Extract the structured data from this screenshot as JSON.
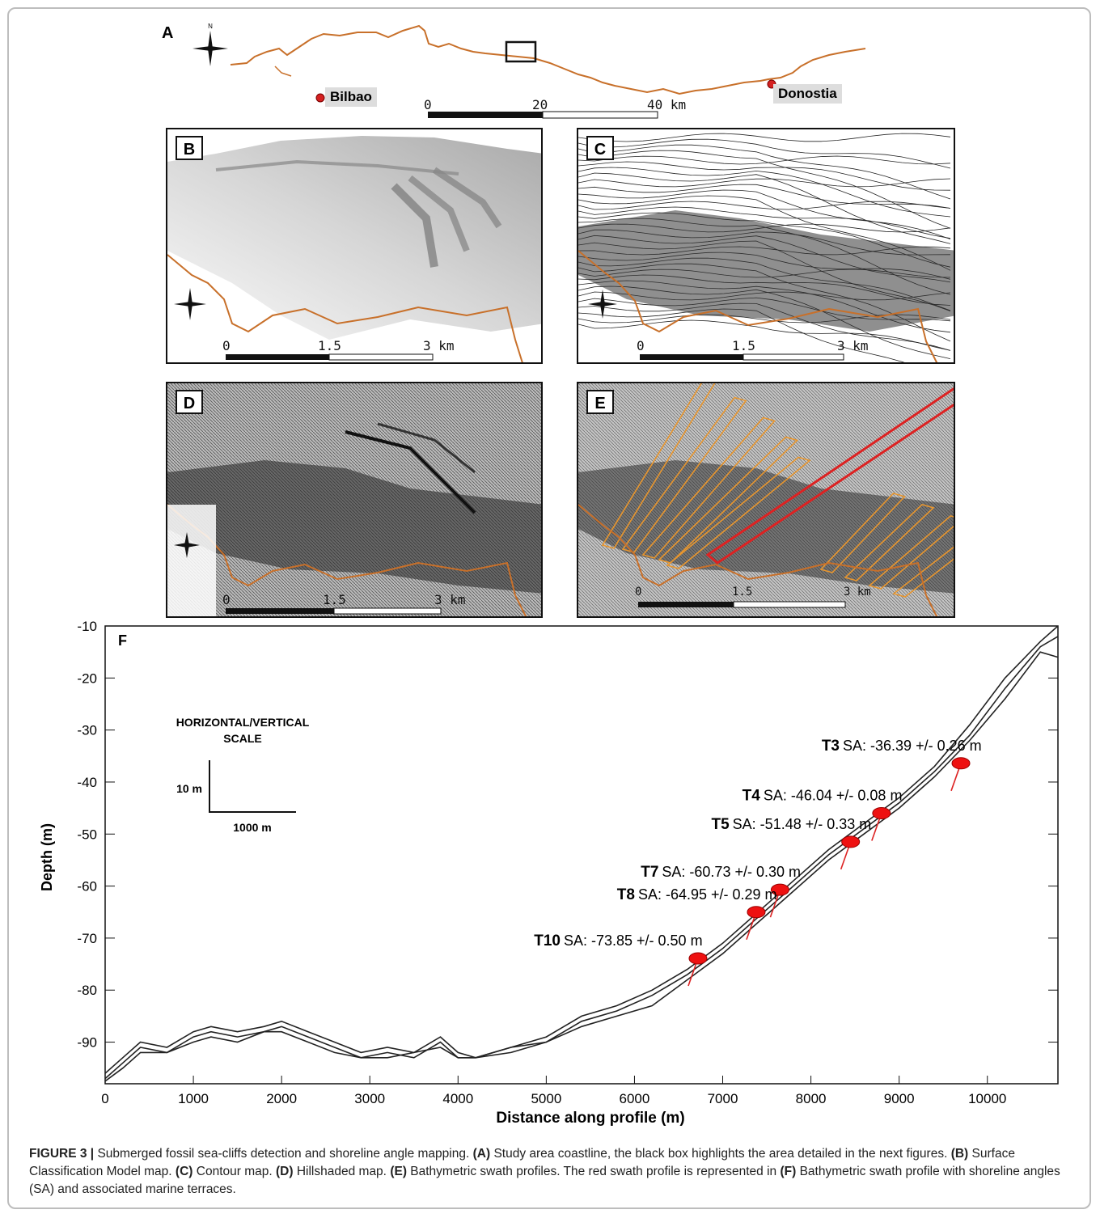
{
  "panels": {
    "a": {
      "label": "A"
    },
    "b": {
      "label": "B"
    },
    "c": {
      "label": "C"
    },
    "d": {
      "label": "D"
    },
    "e": {
      "label": "E"
    },
    "f": {
      "label": "F"
    }
  },
  "map_a": {
    "cities": [
      "Bilbao",
      "Donostia"
    ],
    "scale_ticks": [
      "0",
      "20",
      "40 km"
    ]
  },
  "small_scale_ticks": [
    "0",
    "1.5",
    "3 km"
  ],
  "north_label": "N",
  "colors": {
    "coast": "#c8702a",
    "swath": "#e8962e",
    "profile": "#dd2222",
    "marker": "#ee1111"
  },
  "chart_data": {
    "type": "line",
    "xlabel": "Distance along profile (m)",
    "ylabel": "Depth (m)",
    "xlim": [
      0,
      10800
    ],
    "ylim": [
      -98,
      -10
    ],
    "xticks": [
      "0",
      "1000",
      "2000",
      "3000",
      "4000",
      "5000",
      "6000",
      "7000",
      "8000",
      "9000",
      "10000"
    ],
    "yticks": [
      "-10",
      "-20",
      "-30",
      "-40",
      "-50",
      "-60",
      "-70",
      "-80",
      "-90"
    ],
    "scale_box": {
      "title_line1": "HORIZONTAL/VERTICAL",
      "title_line2": "SCALE",
      "vertical": "10 m",
      "horizontal": "1000 m"
    },
    "series": [
      {
        "x": [
          0,
          200,
          400,
          700,
          1000,
          1200,
          1500,
          1800,
          2000,
          2300,
          2600,
          2900,
          3200,
          3500,
          3800,
          4000,
          4200,
          4600,
          5000,
          5400,
          5800,
          6200,
          6600,
          7000,
          7400,
          7800,
          8200,
          8600,
          9000,
          9400,
          9800,
          10200,
          10600,
          10800
        ],
        "y": [
          -96,
          -93,
          -90,
          -91,
          -88,
          -87,
          -88,
          -87,
          -86,
          -88,
          -90,
          -92,
          -91,
          -92,
          -89,
          -92,
          -93,
          -91,
          -89,
          -85,
          -83,
          -80,
          -76,
          -71,
          -65,
          -59,
          -53,
          -48,
          -43,
          -37,
          -29,
          -20,
          -13,
          -10
        ]
      },
      {
        "x": [
          0,
          200,
          400,
          700,
          1000,
          1200,
          1500,
          1800,
          2000,
          2300,
          2600,
          2900,
          3200,
          3500,
          3800,
          4000,
          4200,
          4600,
          5000,
          5400,
          5800,
          6200,
          6600,
          7000,
          7400,
          7800,
          8200,
          8600,
          9000,
          9400,
          9800,
          10200,
          10600,
          10800
        ],
        "y": [
          -97,
          -94,
          -91,
          -92,
          -89,
          -88,
          -89,
          -88,
          -87,
          -89,
          -91,
          -93,
          -92,
          -93,
          -90,
          -93,
          -93,
          -92,
          -90,
          -86,
          -84,
          -81,
          -77,
          -72,
          -66,
          -60,
          -54,
          -49,
          -44,
          -38,
          -31,
          -22,
          -14,
          -12
        ]
      },
      {
        "x": [
          0,
          200,
          400,
          700,
          1000,
          1200,
          1500,
          1800,
          2000,
          2300,
          2600,
          2900,
          3200,
          3500,
          3800,
          4000,
          4200,
          4600,
          5000,
          5400,
          5800,
          6200,
          6600,
          7000,
          7400,
          7800,
          8200,
          8600,
          9000,
          9400,
          9800,
          10200,
          10600,
          10800
        ],
        "y": [
          -97.5,
          -95,
          -92,
          -92,
          -90,
          -89,
          -90,
          -88,
          -88,
          -90,
          -92,
          -93,
          -93,
          -92,
          -91,
          -93,
          -93,
          -91,
          -90,
          -87,
          -85,
          -83,
          -78,
          -73,
          -67,
          -61,
          -55,
          -50,
          -45,
          -39,
          -32,
          -24,
          -15,
          -16
        ]
      }
    ],
    "terraces": [
      {
        "name": "T3",
        "sa": "SA: -36.39 +/- 0.26 m",
        "x": 9700,
        "y": -36.4
      },
      {
        "name": "T4",
        "sa": "SA: -46.04 +/- 0.08 m",
        "x": 8800,
        "y": -46.0
      },
      {
        "name": "T5",
        "sa": "SA: -51.48 +/- 0.33 m",
        "x": 8450,
        "y": -51.5
      },
      {
        "name": "T7",
        "sa": "SA: -60.73 +/- 0.30 m",
        "x": 7650,
        "y": -60.7
      },
      {
        "name": "T8",
        "sa": "SA: -64.95 +/- 0.29 m",
        "x": 7380,
        "y": -65.0
      },
      {
        "name": "T10",
        "sa": "SA: -73.85 +/- 0.50 m",
        "x": 6720,
        "y": -73.9
      }
    ]
  },
  "caption": {
    "fig": "FIGURE 3 |",
    "intro": "Submerged fossil sea-cliffs detection and shoreline angle mapping.",
    "a_tag": "(A)",
    "a_text": "Study area coastline, the black box highlights the area detailed in the next figures.",
    "b_tag": "(B)",
    "b_text": "Surface Classification Model map.",
    "c_tag": "(C)",
    "c_text": "Contour map.",
    "d_tag": "(D)",
    "d_text": "Hillshaded map.",
    "e_tag": "(E)",
    "e_text": "Bathymetric swath profiles. The red swath profile is represented in",
    "f_tag": "(F)",
    "f_text": "Bathymetric swath profile with shoreline angles (SA) and associated marine terraces."
  }
}
